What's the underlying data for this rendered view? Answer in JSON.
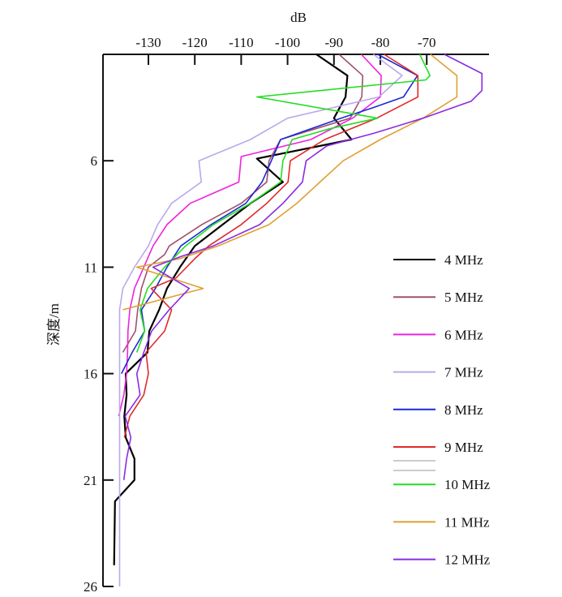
{
  "chart_data": {
    "type": "line",
    "title": "",
    "xlabel": "dB",
    "ylabel": "深度/m",
    "xlim": [
      -136.5,
      -56
    ],
    "ylim": [
      1,
      26
    ],
    "y_inverted": true,
    "x_axis_position": "top",
    "grid": false,
    "legend_position": "right",
    "x_ticks": [
      -130,
      -120,
      -110,
      -100,
      -90,
      -80,
      -70
    ],
    "x_tick_labels": [
      "-130",
      "-120",
      "-110",
      "-100",
      "-90",
      "-80",
      "-70"
    ],
    "y_ticks": [
      6,
      11,
      16,
      21,
      26
    ],
    "y_tick_labels": [
      "6",
      "11",
      "16",
      "21",
      "26"
    ],
    "series": [
      {
        "name": "4 MHz",
        "color": "#000000",
        "points": [
          [
            1,
            -93.8
          ],
          [
            2,
            -87.1
          ],
          [
            3,
            -87.5
          ],
          [
            4,
            -90
          ],
          [
            5,
            -86.2
          ],
          [
            5.9,
            -106.6
          ],
          [
            7,
            -101
          ],
          [
            8,
            -108
          ],
          [
            9,
            -114
          ],
          [
            10,
            -120
          ],
          [
            11,
            -123.2
          ],
          [
            12,
            -126
          ],
          [
            13,
            -127.7
          ],
          [
            14,
            -129.8
          ],
          [
            15,
            -130.2
          ],
          [
            16,
            -134.9
          ],
          [
            17,
            -134.7
          ],
          [
            18,
            -135.2
          ],
          [
            19,
            -134.9
          ],
          [
            20,
            -133
          ],
          [
            21,
            -133
          ],
          [
            22,
            -137.2
          ],
          [
            25,
            -137.4
          ]
        ]
      },
      {
        "name": "5 MHz",
        "color": "#a0506a",
        "points": [
          [
            1,
            -88.9
          ],
          [
            2,
            -83.8
          ],
          [
            3,
            -84
          ],
          [
            4,
            -86.5
          ],
          [
            5,
            -101.5
          ],
          [
            6,
            -104
          ],
          [
            7,
            -104.5
          ],
          [
            8,
            -110
          ],
          [
            9,
            -118.5
          ],
          [
            10,
            -125.5
          ],
          [
            10.4,
            -126.5
          ],
          [
            11,
            -130
          ],
          [
            12,
            -131.5
          ],
          [
            13,
            -132.3
          ],
          [
            14,
            -132.8
          ],
          [
            15,
            -135.5
          ]
        ]
      },
      {
        "name": "6 MHz",
        "color": "#ee22dd",
        "points": [
          [
            1,
            -84.1
          ],
          [
            2,
            -79.8
          ],
          [
            3,
            -80
          ],
          [
            4,
            -86
          ],
          [
            5,
            -95
          ],
          [
            5.8,
            -110
          ],
          [
            7,
            -110.5
          ],
          [
            8,
            -121
          ],
          [
            9,
            -126
          ],
          [
            10,
            -129
          ],
          [
            11,
            -131
          ],
          [
            12,
            -133
          ],
          [
            13,
            -134
          ],
          [
            14,
            -134.4
          ],
          [
            15,
            -134.5
          ],
          [
            16,
            -134.7
          ],
          [
            17,
            -135.3
          ],
          [
            18,
            -136.4
          ]
        ]
      },
      {
        "name": "7 MHz",
        "color": "#bba8ec",
        "points": [
          [
            1,
            -81.5
          ],
          [
            2,
            -75.3
          ],
          [
            3,
            -80.3
          ],
          [
            4,
            -100
          ],
          [
            5,
            -108
          ],
          [
            6,
            -119.1
          ],
          [
            7,
            -118.6
          ],
          [
            8,
            -125
          ],
          [
            9,
            -128
          ],
          [
            10,
            -130
          ],
          [
            11,
            -133
          ],
          [
            12,
            -135.5
          ],
          [
            13,
            -136.2
          ],
          [
            26,
            -136.2
          ]
        ]
      },
      {
        "name": "8 MHz",
        "color": "#1a2ad6",
        "points": [
          [
            1,
            -80.6
          ],
          [
            2,
            -72
          ],
          [
            3,
            -75
          ],
          [
            3.5,
            -81.5
          ],
          [
            4,
            -88.5
          ],
          [
            5,
            -101.5
          ],
          [
            6,
            -103.5
          ],
          [
            7,
            -105.5
          ],
          [
            8,
            -109
          ],
          [
            9,
            -116.5
          ],
          [
            10,
            -123
          ],
          [
            11,
            -126
          ],
          [
            12,
            -128.5
          ],
          [
            13,
            -131.5
          ],
          [
            14,
            -130.8
          ],
          [
            15,
            -133.5
          ],
          [
            16,
            -135.8
          ]
        ]
      },
      {
        "name": "9 MHz",
        "color": "#e02a2a",
        "points": [
          [
            1,
            -79.2
          ],
          [
            2,
            -71.9
          ],
          [
            3,
            -71.9
          ],
          [
            4,
            -80.8
          ],
          [
            5,
            -92
          ],
          [
            6,
            -99.4
          ],
          [
            7,
            -99.9
          ],
          [
            8,
            -104.5
          ],
          [
            9,
            -110
          ],
          [
            10,
            -117
          ],
          [
            10.6,
            -120
          ],
          [
            11.5,
            -124
          ],
          [
            12,
            -129.4
          ],
          [
            13,
            -125
          ],
          [
            14,
            -126.5
          ],
          [
            15,
            -130.5
          ],
          [
            16,
            -130
          ],
          [
            17,
            -131
          ],
          [
            18,
            -134
          ],
          [
            19,
            -135.2
          ]
        ]
      },
      {
        "name": "10 MHz",
        "color": "#22dd22",
        "points": [
          [
            1,
            -71.5
          ],
          [
            2,
            -69.3
          ],
          [
            2.2,
            -70.2
          ],
          [
            3,
            -106.6
          ],
          [
            4,
            -80.6
          ],
          [
            4.5,
            -91
          ],
          [
            5,
            -99
          ],
          [
            6,
            -101
          ],
          [
            7,
            -101.5
          ],
          [
            8,
            -108
          ],
          [
            9,
            -116
          ],
          [
            10,
            -122
          ],
          [
            11,
            -126.5
          ],
          [
            12,
            -130.2
          ],
          [
            13,
            -131.8
          ],
          [
            14,
            -130.8
          ],
          [
            15,
            -132.5
          ]
        ]
      },
      {
        "name": "11 MHz",
        "color": "#e0a030",
        "points": [
          [
            1,
            -69.2
          ],
          [
            2,
            -63.5
          ],
          [
            3,
            -63.5
          ],
          [
            4,
            -70.8
          ],
          [
            5,
            -80
          ],
          [
            6,
            -88
          ],
          [
            7,
            -93
          ],
          [
            8,
            -98
          ],
          [
            9,
            -104
          ],
          [
            10,
            -115
          ],
          [
            10.6,
            -123.2
          ],
          [
            11,
            -132.5
          ],
          [
            12,
            -118.2
          ],
          [
            13,
            -135.5
          ]
        ]
      },
      {
        "name": "12 MHz",
        "color": "#8a2be2",
        "points": [
          [
            1,
            -66.2
          ],
          [
            1.9,
            -58.1
          ],
          [
            2.7,
            -58.1
          ],
          [
            3.2,
            -60.4
          ],
          [
            4,
            -70.8
          ],
          [
            4.7,
            -81.3
          ],
          [
            5.3,
            -91.5
          ],
          [
            6,
            -96
          ],
          [
            7,
            -96.8
          ],
          [
            8,
            -101
          ],
          [
            9,
            -106
          ],
          [
            10,
            -116
          ],
          [
            10.5,
            -123
          ],
          [
            11,
            -129
          ],
          [
            12,
            -121.2
          ],
          [
            13,
            -125.5
          ],
          [
            14,
            -129.3
          ],
          [
            15,
            -131
          ],
          [
            16,
            -132.5
          ],
          [
            17,
            -131.8
          ],
          [
            18,
            -135
          ],
          [
            19,
            -133.8
          ],
          [
            20,
            -134.7
          ],
          [
            21,
            -135.3
          ]
        ]
      }
    ]
  }
}
